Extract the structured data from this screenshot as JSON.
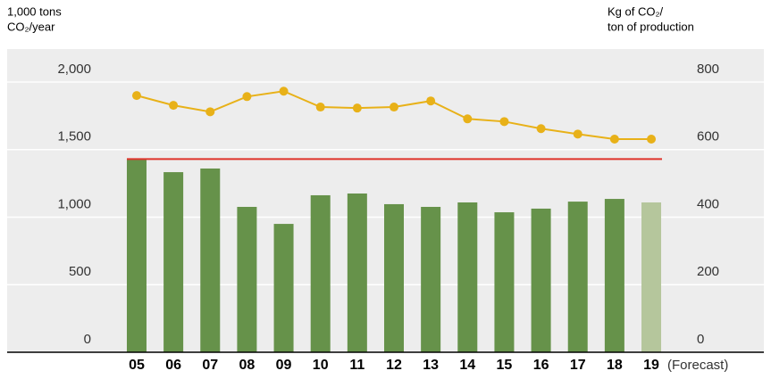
{
  "chart_data": {
    "type": "bar_line",
    "ylabel": [
      "1,000 tons",
      "CO₂/year"
    ],
    "y2label": [
      "Kg of CO₂/",
      "ton of production"
    ],
    "categories": [
      "05",
      "06",
      "07",
      "08",
      "09",
      "10",
      "11",
      "12",
      "13",
      "14",
      "15",
      "16",
      "17",
      "18",
      "19"
    ],
    "annotation": "(Forecast)",
    "series": [
      {
        "type": "bar",
        "colors": [
          "#66924a",
          "#66924a",
          "#66924a",
          "#66924a",
          "#66924a",
          "#66924a",
          "#66924a",
          "#66924a",
          "#66924a",
          "#66924a",
          "#66924a",
          "#66924a",
          "#66924a",
          "#66924a",
          "#b5c69c"
        ],
        "values": [
          1430,
          1333,
          1360,
          1076,
          950,
          1162,
          1175,
          1096,
          1076,
          1109,
          1036,
          1063,
          1115,
          1135,
          1109
        ]
      },
      {
        "type": "line",
        "axis": "y2",
        "color": "#e8b118",
        "values": [
          760,
          731,
          712,
          757,
          773,
          726,
          723,
          726,
          744,
          691,
          683,
          662,
          646,
          631,
          631
        ]
      }
    ],
    "reference_line": {
      "value": 1430,
      "color": "#e0332b"
    },
    "ylim": [
      0,
      2000
    ],
    "yticks": [
      0,
      500,
      {
        "value": 1000,
        "label": "1,000"
      },
      {
        "value": 1500,
        "label": "1,500"
      },
      {
        "value": 2000,
        "label": "2,000"
      }
    ],
    "y2lim": [
      0,
      800
    ],
    "y2ticks": [
      0,
      200,
      400,
      600,
      800
    ],
    "grid": true
  }
}
